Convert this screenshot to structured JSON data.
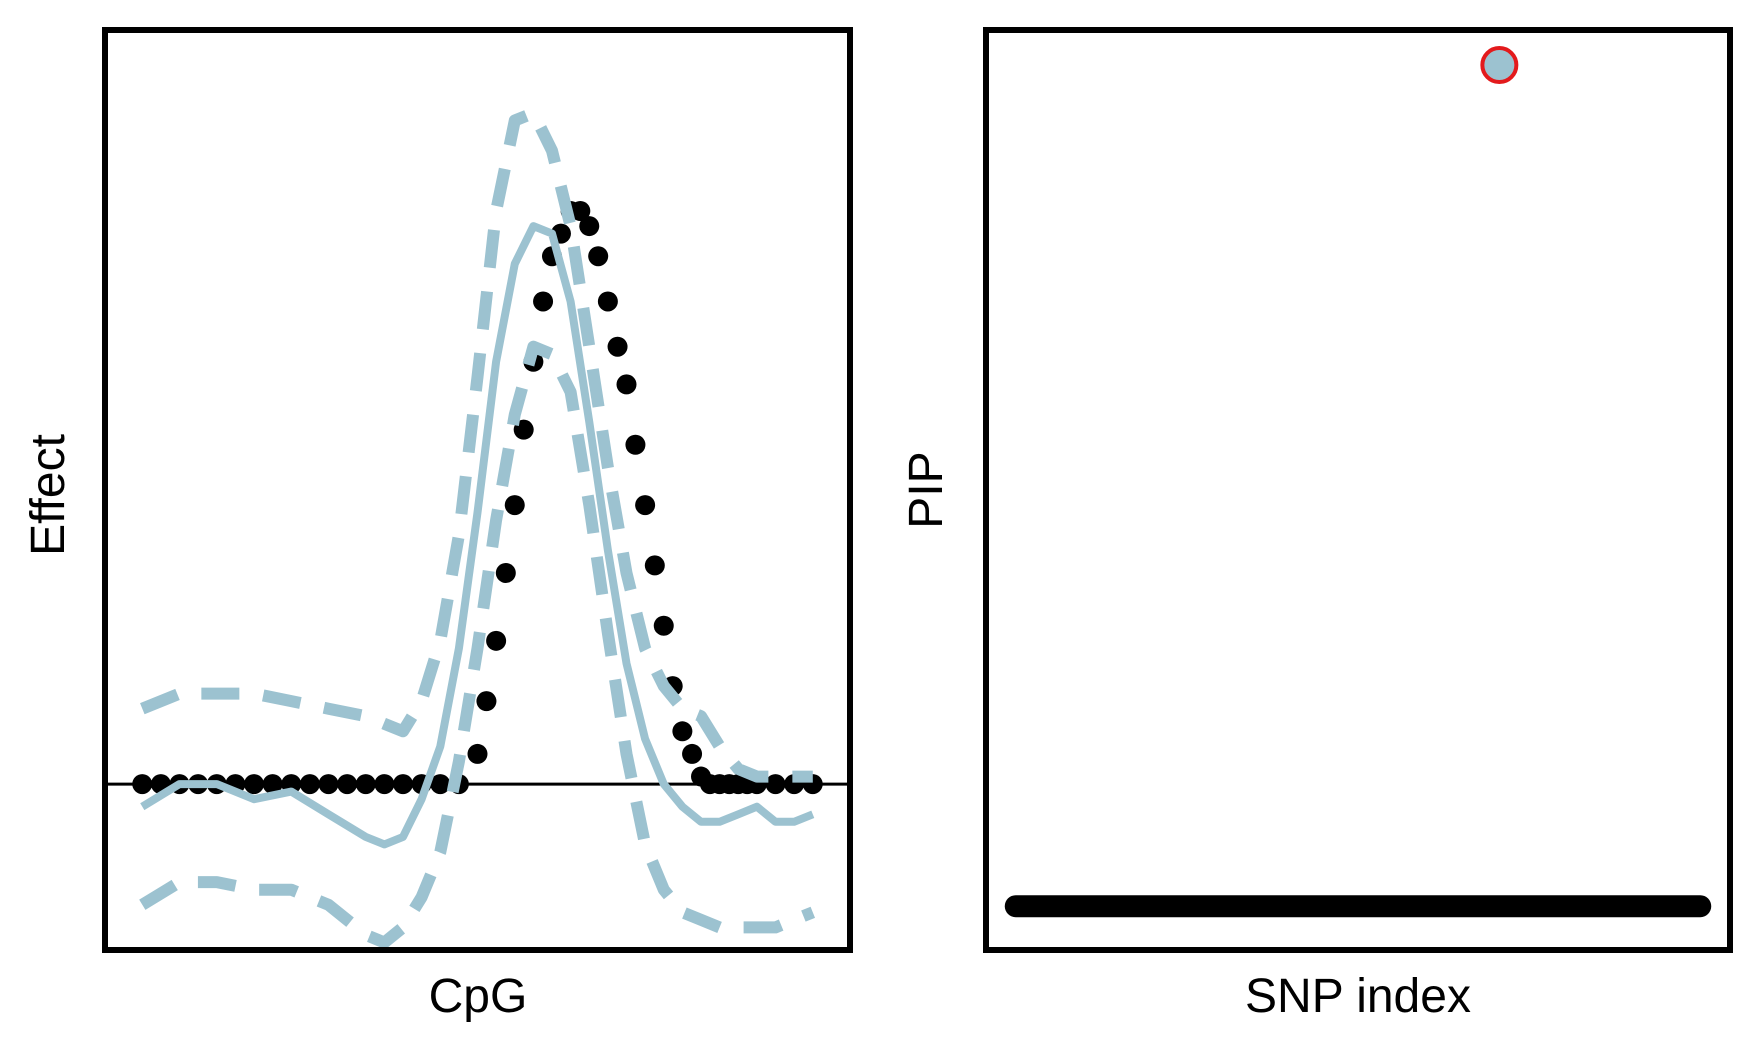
{
  "chart_data": [
    {
      "type": "line",
      "title": "",
      "xlabel": "CpG",
      "ylabel": "Effect",
      "xlim": [
        0,
        1
      ],
      "ylim": [
        -0.22,
        1.0
      ],
      "grid": false,
      "legend": "none",
      "axis_ticks": "hidden",
      "reference_line": {
        "y": 0,
        "color": "#000000"
      },
      "colors": {
        "true_effect": "#000000",
        "estimate": "#9cc2d0",
        "interval": "#9cc2d0"
      },
      "series": [
        {
          "style": "dotted-points",
          "x": [
            0.05,
            0.075,
            0.1,
            0.125,
            0.15,
            0.175,
            0.2,
            0.225,
            0.25,
            0.275,
            0.3,
            0.325,
            0.35,
            0.375,
            0.4,
            0.425,
            0.45,
            0.475,
            0.5,
            0.512,
            0.525,
            0.538,
            0.55,
            0.562,
            0.575,
            0.588,
            0.6,
            0.612,
            0.625,
            0.638,
            0.65,
            0.662,
            0.675,
            0.688,
            0.7,
            0.712,
            0.725,
            0.738,
            0.75,
            0.762,
            0.775,
            0.788,
            0.8,
            0.812,
            0.825,
            0.838,
            0.85,
            0.862,
            0.875,
            0.9,
            0.925,
            0.95
          ],
          "y": [
            0,
            0,
            0,
            0,
            0,
            0,
            0,
            0,
            0,
            0,
            0,
            0,
            0,
            0,
            0,
            0,
            0,
            0,
            0.04,
            0.11,
            0.19,
            0.28,
            0.37,
            0.47,
            0.56,
            0.64,
            0.7,
            0.73,
            0.76,
            0.76,
            0.74,
            0.7,
            0.64,
            0.58,
            0.53,
            0.45,
            0.37,
            0.29,
            0.21,
            0.13,
            0.07,
            0.04,
            0.01,
            0,
            0,
            0,
            0,
            0,
            0,
            0,
            0,
            0
          ]
        },
        {
          "style": "solid",
          "x": [
            0.05,
            0.1,
            0.15,
            0.2,
            0.25,
            0.3,
            0.35,
            0.375,
            0.4,
            0.425,
            0.45,
            0.475,
            0.5,
            0.525,
            0.55,
            0.575,
            0.6,
            0.625,
            0.65,
            0.675,
            0.7,
            0.725,
            0.75,
            0.775,
            0.8,
            0.825,
            0.85,
            0.875,
            0.9,
            0.925,
            0.95
          ],
          "y": [
            -0.03,
            0,
            0,
            -0.02,
            -0.01,
            -0.04,
            -0.07,
            -0.08,
            -0.07,
            -0.02,
            0.05,
            0.18,
            0.36,
            0.56,
            0.69,
            0.74,
            0.73,
            0.64,
            0.48,
            0.31,
            0.16,
            0.06,
            0,
            -0.03,
            -0.05,
            -0.05,
            -0.04,
            -0.03,
            -0.05,
            -0.05,
            -0.04
          ]
        },
        {
          "style": "dashed",
          "x": [
            0.05,
            0.1,
            0.15,
            0.2,
            0.25,
            0.3,
            0.35,
            0.375,
            0.4,
            0.425,
            0.45,
            0.475,
            0.5,
            0.525,
            0.55,
            0.575,
            0.6,
            0.625,
            0.65,
            0.675,
            0.7,
            0.725,
            0.75,
            0.775,
            0.8,
            0.825,
            0.85,
            0.875,
            0.9,
            0.925,
            0.95
          ],
          "y": [
            0.1,
            0.12,
            0.12,
            0.12,
            0.11,
            0.1,
            0.09,
            0.08,
            0.07,
            0.11,
            0.19,
            0.33,
            0.54,
            0.76,
            0.88,
            0.89,
            0.84,
            0.74,
            0.58,
            0.42,
            0.28,
            0.18,
            0.13,
            0.1,
            0.09,
            0.05,
            0.02,
            0.01,
            0.01,
            0.01,
            0.01
          ]
        },
        {
          "style": "dashed",
          "x": [
            0.05,
            0.1,
            0.15,
            0.2,
            0.25,
            0.3,
            0.35,
            0.375,
            0.4,
            0.425,
            0.45,
            0.475,
            0.5,
            0.525,
            0.55,
            0.575,
            0.6,
            0.625,
            0.65,
            0.675,
            0.7,
            0.725,
            0.75,
            0.775,
            0.8,
            0.825,
            0.85,
            0.875,
            0.9,
            0.925,
            0.95
          ],
          "y": [
            -0.16,
            -0.13,
            -0.13,
            -0.14,
            -0.14,
            -0.16,
            -0.2,
            -0.21,
            -0.19,
            -0.15,
            -0.09,
            0.03,
            0.18,
            0.35,
            0.49,
            0.58,
            0.57,
            0.52,
            0.37,
            0.2,
            0.04,
            -0.08,
            -0.14,
            -0.17,
            -0.18,
            -0.19,
            -0.19,
            -0.19,
            -0.19,
            -0.18,
            -0.17
          ]
        }
      ]
    },
    {
      "type": "scatter",
      "title": "",
      "xlabel": "SNP index",
      "ylabel": "PIP",
      "xlim": [
        0,
        1
      ],
      "ylim": [
        -0.05,
        1.0
      ],
      "grid": false,
      "legend": "none",
      "axis_ticks": "hidden",
      "colors": {
        "baseline": "#000000",
        "highlight_fill": "#9cc2d0",
        "highlight_edge": "#e31a1c"
      },
      "baseline": {
        "x_from": 0.04,
        "x_to": 0.96,
        "y": 0
      },
      "highlight": {
        "x": 0.69,
        "y": 0.96
      }
    }
  ]
}
